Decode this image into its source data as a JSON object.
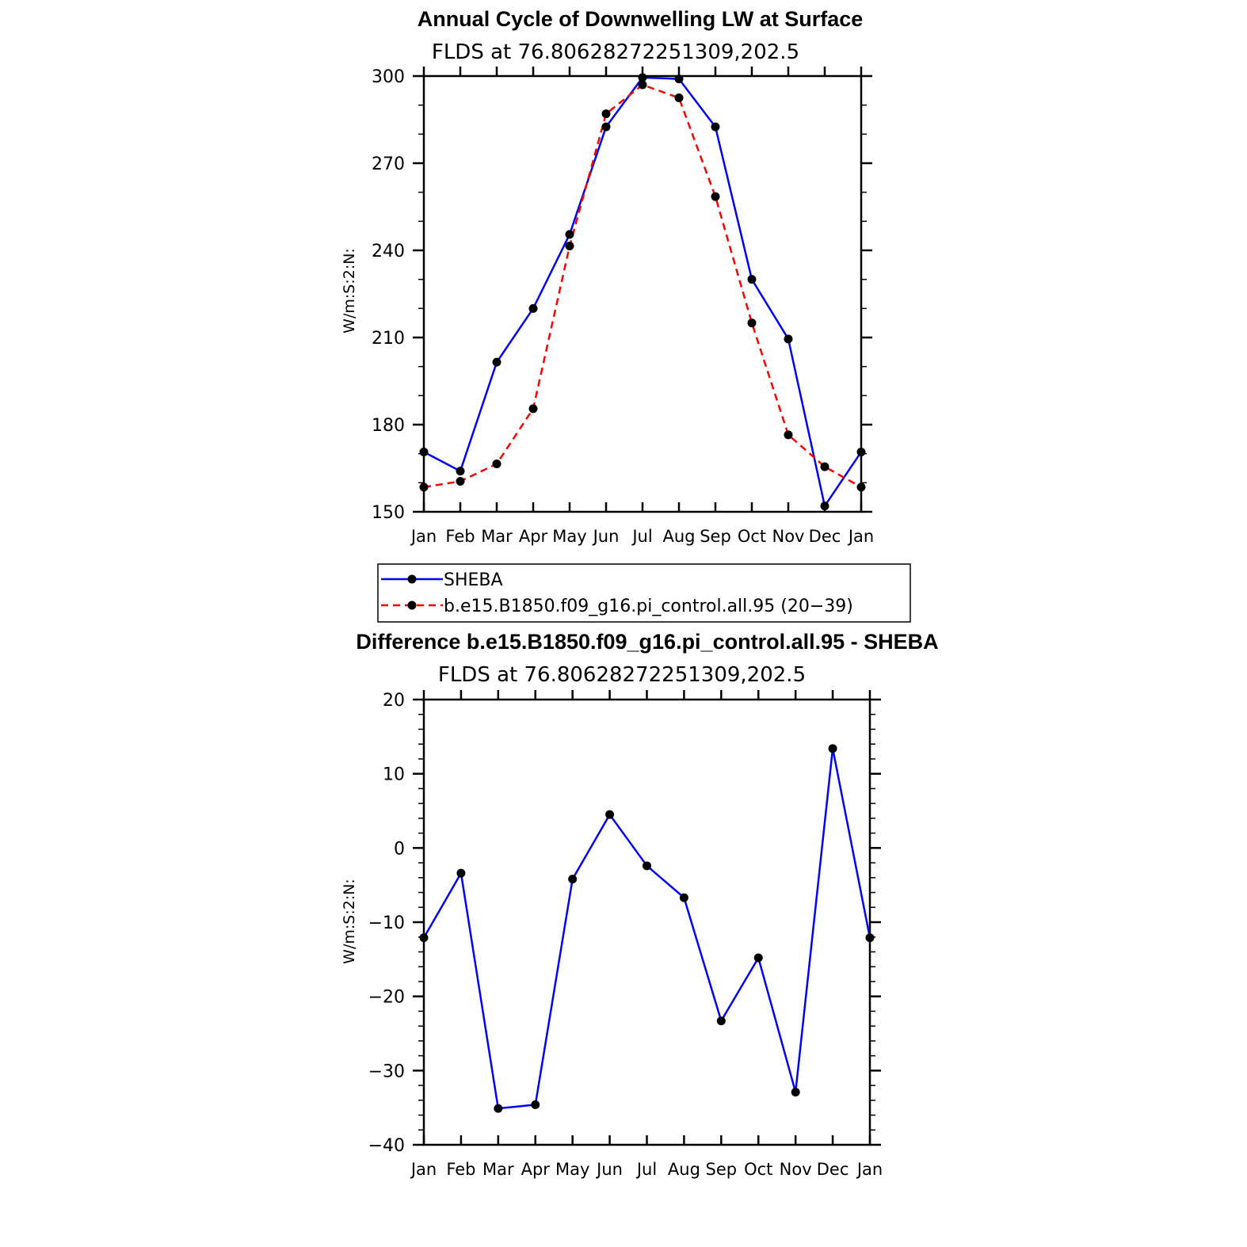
{
  "chart_data": [
    {
      "type": "line",
      "title": "Annual Cycle of Downwelling LW at Surface",
      "subtitle": "FLDS at 76.80628272251309,202.5",
      "ylabel": "W/m:S:2:N:",
      "xlabel": "",
      "categories": [
        "Jan",
        "Feb",
        "Mar",
        "Apr",
        "May",
        "Jun",
        "Jul",
        "Aug",
        "Sep",
        "Oct",
        "Nov",
        "Dec",
        "Jan"
      ],
      "ylim": [
        150,
        300
      ],
      "yticks": [
        150,
        180,
        210,
        240,
        270,
        300
      ],
      "series": [
        {
          "name": "SHEBA",
          "color": "#0000ff",
          "dash": "solid",
          "values": [
            170.6,
            164.0,
            201.5,
            220.0,
            245.5,
            282.5,
            299.5,
            299.0,
            282.5,
            230.0,
            209.5,
            152.0,
            170.6
          ]
        },
        {
          "name": "b.e15.B1850.f09_g16.pi_control.all.95 (20−39)",
          "color": "#ff0000",
          "dash": "dashed",
          "values": [
            158.5,
            160.5,
            166.5,
            185.5,
            241.5,
            287.0,
            297.0,
            292.5,
            258.5,
            215.0,
            176.5,
            165.5,
            158.5
          ]
        }
      ],
      "legend_position": "below"
    },
    {
      "type": "line",
      "title": "Difference b.e15.B1850.f09_g16.pi_control.all.95 - SHEBA",
      "subtitle": "FLDS at 76.80628272251309,202.5",
      "ylabel": "W/m:S:2:N:",
      "xlabel": "",
      "categories": [
        "Jan",
        "Feb",
        "Mar",
        "Apr",
        "May",
        "Jun",
        "Jul",
        "Aug",
        "Sep",
        "Oct",
        "Nov",
        "Dec",
        "Jan"
      ],
      "ylim": [
        -40,
        20
      ],
      "yticks": [
        -40,
        -30,
        -20,
        -10,
        0,
        10,
        20
      ],
      "ytick_labels": [
        "−40",
        "−30",
        "−20",
        "−10",
        "0",
        "10",
        "20"
      ],
      "series": [
        {
          "color": "#0000ff",
          "dash": "solid",
          "values": [
            -12.1,
            -3.4,
            -35.1,
            -34.6,
            -4.2,
            4.5,
            -2.4,
            -6.7,
            -23.3,
            -14.8,
            -32.9,
            13.4,
            -12.1
          ]
        }
      ]
    }
  ]
}
